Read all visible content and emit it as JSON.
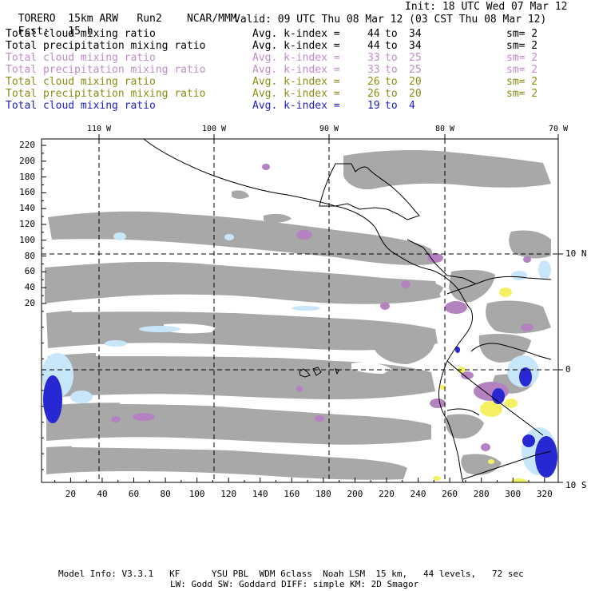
{
  "header": {
    "model": "TORERO",
    "grid": "15km ARW",
    "run": "Run2",
    "org": "NCAR/MMM",
    "init": "Init: 18 UTC Wed 07 Mar 12",
    "fcst_label": "Fcst:",
    "fcst_value": "15 h",
    "valid": "Valid: 09 UTC Thu 08 Mar 12 (03 CST Thu 08 Mar 12)"
  },
  "legend": [
    {
      "name": "Total cloud mixing ratio",
      "avg": "Avg. k-index =",
      "v1": "44",
      "to": "to",
      "v2": "34",
      "sm": "sm= 2",
      "color": "#000000"
    },
    {
      "name": "Total precipitation mixing ratio",
      "avg": "Avg. k-index =",
      "v1": "44",
      "to": "to",
      "v2": "34",
      "sm": "sm= 2",
      "color": "#000000"
    },
    {
      "name": "Total cloud mixing ratio",
      "avg": "Avg. k-index =",
      "v1": "33",
      "to": "to",
      "v2": "25",
      "sm": "sm= 2",
      "color": "#c08ccc"
    },
    {
      "name": "Total precipitation mixing ratio",
      "avg": "Avg. k-index =",
      "v1": "33",
      "to": "to",
      "v2": "25",
      "sm": "sm= 2",
      "color": "#c08ccc"
    },
    {
      "name": "Total cloud mixing ratio",
      "avg": "Avg. k-index =",
      "v1": "26",
      "to": "to",
      "v2": "20",
      "sm": "sm= 2",
      "color": "#8c8c14"
    },
    {
      "name": "Total precipitation mixing ratio",
      "avg": "Avg. k-index =",
      "v1": "26",
      "to": "to",
      "v2": "20",
      "sm": "sm= 2",
      "color": "#8c8c14"
    },
    {
      "name": "Total cloud mixing ratio",
      "avg": "Avg. k-index =",
      "v1": "19",
      "to": "to",
      "v2": "4",
      "sm": "",
      "color": "#1e1ec8"
    }
  ],
  "lon_labels": [
    "110 W",
    "100 W",
    "90 W",
    "80 W",
    "70 W"
  ],
  "lat_labels": [
    "10 N",
    "0",
    "10 S"
  ],
  "y_ticks": [
    "220",
    "200",
    "180",
    "160",
    "140",
    "120",
    "100",
    "80",
    "60",
    "40",
    "20"
  ],
  "x_ticks": [
    "20",
    "40",
    "60",
    "80",
    "100",
    "120",
    "140",
    "160",
    "180",
    "200",
    "220",
    "240",
    "260",
    "280",
    "300",
    "320"
  ],
  "footer": {
    "line1": "Model Info: V3.3.1   KF      YSU PBL  WDM 6class  Noah LSM  15 km,   44 levels,   72 sec",
    "line2": "LW: Godd SW: Goddard DIFF: simple KM: 2D Smagor"
  },
  "colors": {
    "cloud_gray": "#a8a8a8",
    "purple": "#b482c0",
    "yellow": "#f5f064",
    "light_blue": "#c8e6fa",
    "blue": "#2828d2",
    "dark_blue": "#1414c8"
  }
}
